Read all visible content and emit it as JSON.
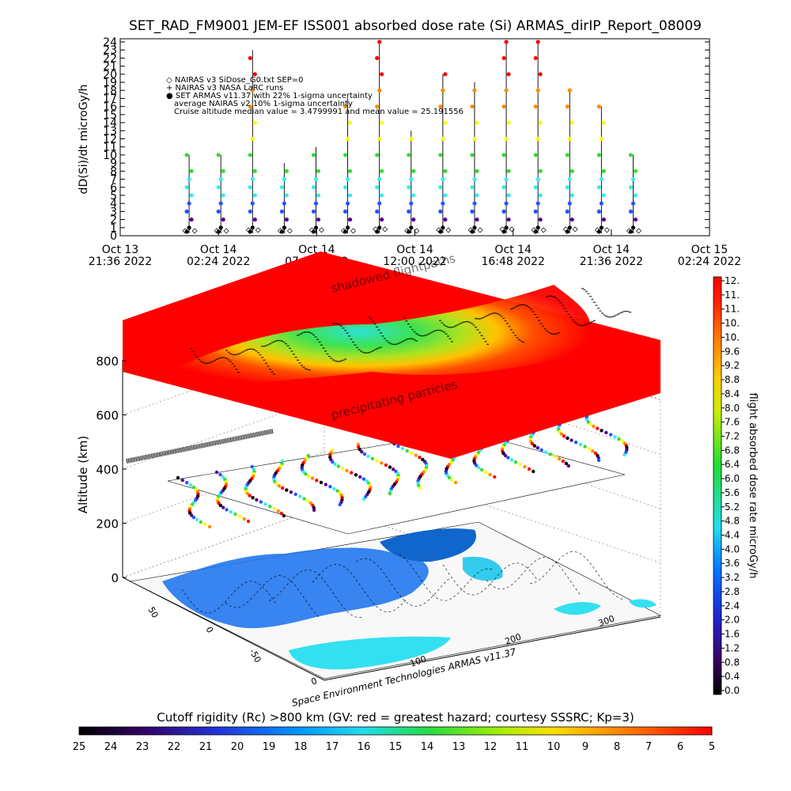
{
  "title": "SET_RAD_FM9001  JEM-EF ISS001 absorbed dose rate (Si) ARMAS_dirIP_Report_08009",
  "top_chart": {
    "ylabel": "dD(Si)/dt microGy/h",
    "legend": [
      "◇ NAIRAS v3 SiDose_G0.txt SEP=0",
      "+ NAIRAS v3 NASA LaRC runs",
      "● SET ARMAS v11.37 with 22% 1-sigma uncertainty",
      "average NAIRAS v2 10% 1-sigma uncertainty",
      "Cruise altitude median value = 3.4799991 and mean value = 25.191556"
    ],
    "y_ticks": [
      "0",
      "1",
      "2",
      "3",
      "4",
      "5",
      "6",
      "7",
      "8",
      "9",
      "10",
      "11",
      "12",
      "13",
      "14",
      "15",
      "16",
      "17",
      "18",
      "19",
      "20",
      "21",
      "22",
      "23",
      "24"
    ],
    "x_ticks": [
      {
        "l1": "Oct 13",
        "l2": "21:36 2022"
      },
      {
        "l1": "Oct 14",
        "l2": "02:24 2022"
      },
      {
        "l1": "Oct 14",
        "l2": "07:12 2022"
      },
      {
        "l1": "Oct 14",
        "l2": "12:00 2022"
      },
      {
        "l1": "Oct 14",
        "l2": "16:48 2022"
      },
      {
        "l1": "Oct 14",
        "l2": "21:36 2022"
      },
      {
        "l1": "Oct 15",
        "l2": "02:24 2022"
      }
    ]
  },
  "chart_data": {
    "type": "scatter",
    "title": "SET_RAD_FM9001  JEM-EF ISS001 absorbed dose rate (Si) ARMAS_dirIP_Report_08009",
    "ylabel": "dD(Si)/dt microGy/h",
    "ylim": [
      0,
      24
    ],
    "x": [
      "2022-10-14 00:58",
      "2022-10-14 02:31",
      "2022-10-14 04:04",
      "2022-10-14 05:37",
      "2022-10-14 07:10",
      "2022-10-14 08:43",
      "2022-10-14 10:16",
      "2022-10-14 11:49",
      "2022-10-14 13:22",
      "2022-10-14 14:55",
      "2022-10-14 16:28",
      "2022-10-14 18:01",
      "2022-10-14 19:34",
      "2022-10-14 21:07",
      "2022-10-14 22:40"
    ],
    "series": [
      {
        "name": "SET ARMAS v11.37 with 22% 1-sigma uncertainty",
        "values": [
          10,
          10,
          23,
          9,
          11,
          17,
          24,
          13,
          20,
          19,
          24,
          24,
          18,
          16,
          10
        ]
      },
      {
        "name": "NAIRAS v3 SiDose_G0.txt SEP=0",
        "values": [
          0.6,
          0.6,
          0.7,
          0.6,
          0.7,
          0.6,
          0.8,
          0.6,
          0.7,
          0.7,
          0.8,
          0.7,
          0.8,
          0.7,
          0.6
        ]
      }
    ],
    "stats": {
      "median": 3.4799991,
      "mean": 25.191556
    }
  },
  "globe": {
    "ylabel": "Altitude (km)",
    "alt_ticks": [
      "0",
      "200",
      "400",
      "600",
      "800"
    ],
    "lat_ticks": [
      "50",
      "0",
      "-50"
    ],
    "lon_ticks": [
      "0",
      "100",
      "200",
      "300"
    ],
    "annotation_top": "shadowed flightpaths",
    "annotation_mid": "precipitating particles",
    "credit": "Space Environment Technologies ARMAS v11.37"
  },
  "right_colorbar": {
    "label": "flight absorbed dose rate microGy/h",
    "ticks": [
      "12.",
      "11.",
      "11.",
      "10.",
      "10.",
      "9.6",
      "9.2",
      "8.8",
      "8.4",
      "8.0",
      "7.6",
      "7.2",
      "6.8",
      "6.4",
      "6.0",
      "5.6",
      "5.2",
      "4.8",
      "4.4",
      "4.0",
      "3.6",
      "3.2",
      "2.8",
      "2.4",
      "2.0",
      "1.6",
      "1.2",
      "0.8",
      "0.4",
      "0.0"
    ]
  },
  "bottom_colorbar": {
    "title": "Cutoff rigidity (Rc) >800 km (GV: red = greatest hazard; courtesy SSSRC; Kp=3)",
    "ticks": [
      "25",
      "24",
      "23",
      "22",
      "21",
      "20",
      "19",
      "18",
      "17",
      "16",
      "15",
      "14",
      "13",
      "12",
      "11",
      "10",
      "9",
      "8",
      "7",
      "6",
      "5"
    ]
  },
  "colors": {
    "red": "#ff0000",
    "orange": "#ff8c00",
    "yellow": "#ffff00",
    "green": "#33dd33",
    "cyan": "#33eeee",
    "blue": "#2255ff",
    "purple": "#550088",
    "black": "#000000"
  }
}
